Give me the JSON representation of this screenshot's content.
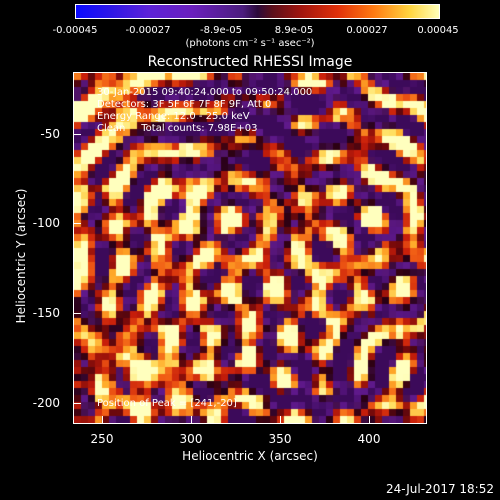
{
  "colorbar": {
    "ticks": [
      "-0.00045",
      "-0.00027",
      "-8.9e-05",
      "8.9e-05",
      "0.00027",
      "0.00045"
    ],
    "units": "(photons cm⁻² s⁻¹ asec⁻²)"
  },
  "plot": {
    "title": "Reconstructed RHESSI Image",
    "xlabel": "Heliocentric X (arcsec)",
    "ylabel": "Heliocentric Y (arcsec)",
    "xticks": [
      "250",
      "300",
      "350",
      "400"
    ],
    "yticks": [
      "-50",
      "-100",
      "-150",
      "-200"
    ],
    "annotations": [
      "30-Jan-2015 09:40:24.000 to 09:50:24.000",
      "Detectors: 3F 5F 6F 7F 8F 9F, Att 0",
      "Energy Range: 12.0 - 25.0 keV",
      "Clean     Total counts: 7.98E+03"
    ],
    "peak_label": "Position of Peak = [241,-20]"
  },
  "footer_date": "24-Jul-2017 18:52"
}
